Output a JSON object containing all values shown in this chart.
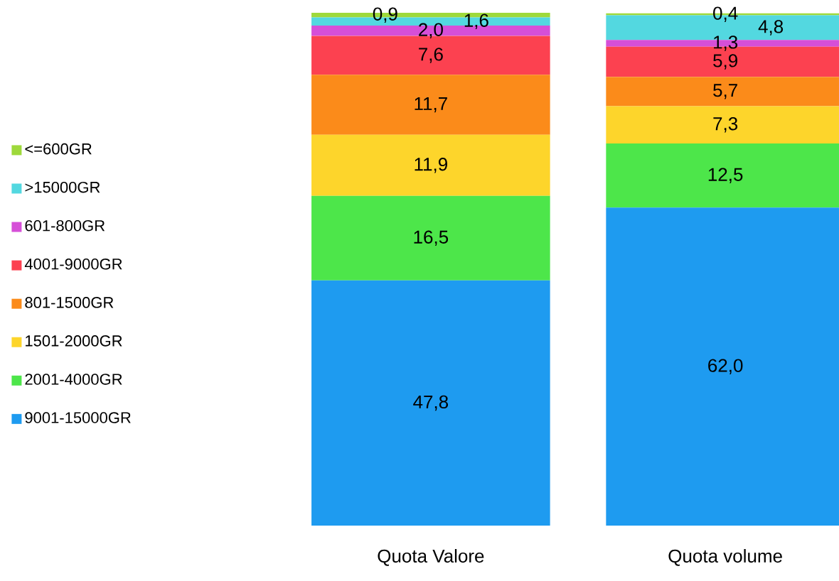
{
  "chart_data": {
    "type": "bar",
    "stacked": true,
    "legend": "left",
    "categories": [
      "Quota Valore",
      "Quota volume"
    ],
    "series": [
      {
        "name": "9001-15000GR",
        "color": "#1e9bf0",
        "values": [
          47.8,
          62.0
        ],
        "value_labels": [
          "47,8",
          "62,0"
        ]
      },
      {
        "name": "2001-4000GR",
        "color": "#4de64a",
        "values": [
          16.5,
          12.5
        ],
        "value_labels": [
          "16,5",
          "12,5"
        ]
      },
      {
        "name": "1501-2000GR",
        "color": "#fdd52b",
        "values": [
          11.9,
          7.3
        ],
        "value_labels": [
          "11,9",
          "7,3"
        ]
      },
      {
        "name": "801-1500GR",
        "color": "#fb8b1a",
        "values": [
          11.7,
          5.7
        ],
        "value_labels": [
          "11,7",
          "5,7"
        ]
      },
      {
        "name": "4001-9000GR",
        "color": "#fc4150",
        "values": [
          7.6,
          5.9
        ],
        "value_labels": [
          "7,6",
          "5,9"
        ]
      },
      {
        "name": "601-800GR",
        "color": "#d64fd8",
        "values": [
          2.0,
          1.3
        ],
        "value_labels": [
          "2,0",
          "1,3"
        ]
      },
      {
        "name": ">15000GR",
        "color": "#53d8e0",
        "values": [
          1.6,
          4.8
        ],
        "value_labels": [
          "1,6",
          "4,8"
        ]
      },
      {
        "name": "<=600GR",
        "color": "#9ed93b",
        "values": [
          0.9,
          0.4
        ],
        "value_labels": [
          "0,9",
          "0,4"
        ]
      }
    ]
  }
}
